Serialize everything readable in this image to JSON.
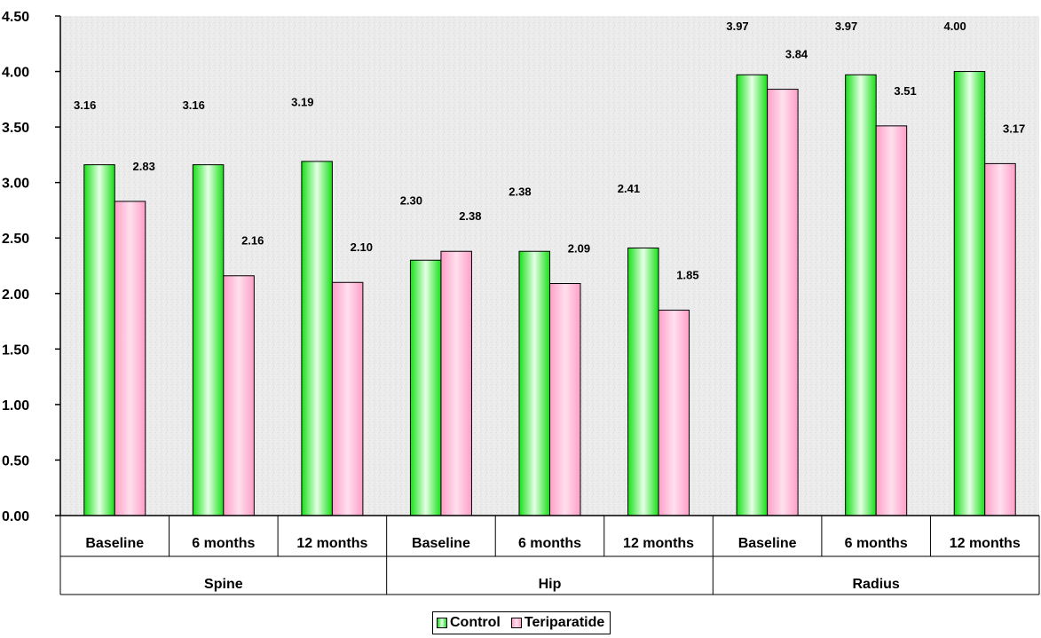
{
  "chart_data": {
    "type": "bar",
    "ylim": [
      0,
      4.5
    ],
    "yticks": [
      "0.00",
      "0.50",
      "1.00",
      "1.50",
      "2.00",
      "2.50",
      "3.00",
      "3.50",
      "4.00",
      "4.50"
    ],
    "groups": [
      {
        "name": "Spine",
        "categories": [
          "Baseline",
          "6 months",
          "12 months"
        ]
      },
      {
        "name": "Hip",
        "categories": [
          "Baseline",
          "6 months",
          "12 months"
        ]
      },
      {
        "name": "Radius",
        "categories": [
          "Baseline",
          "6 months",
          "12 months"
        ]
      }
    ],
    "series": [
      {
        "name": "Control",
        "values": [
          3.16,
          3.16,
          3.19,
          2.3,
          2.38,
          2.41,
          3.97,
          3.97,
          4.0
        ],
        "labels": [
          "3.16",
          "3.16",
          "3.19",
          "2.30",
          "2.38",
          "2.41",
          "3.97",
          "3.97",
          "4.00"
        ]
      },
      {
        "name": "Teriparatide",
        "values": [
          2.83,
          2.16,
          2.1,
          2.38,
          2.09,
          1.85,
          3.84,
          3.51,
          3.17
        ],
        "labels": [
          "2.83",
          "2.16",
          "2.10",
          "2.38",
          "2.09",
          "1.85",
          "3.84",
          "3.51",
          "3.17"
        ]
      }
    ],
    "legend_position": "bottom",
    "grid": false
  },
  "colors": {
    "control_edge": "#16e016",
    "control_center": "#e6ffe6",
    "teriparatide_edge": "#ff9ec8",
    "teriparatide_center": "#ffe0ee",
    "plot_background": "#e9e9e9"
  }
}
